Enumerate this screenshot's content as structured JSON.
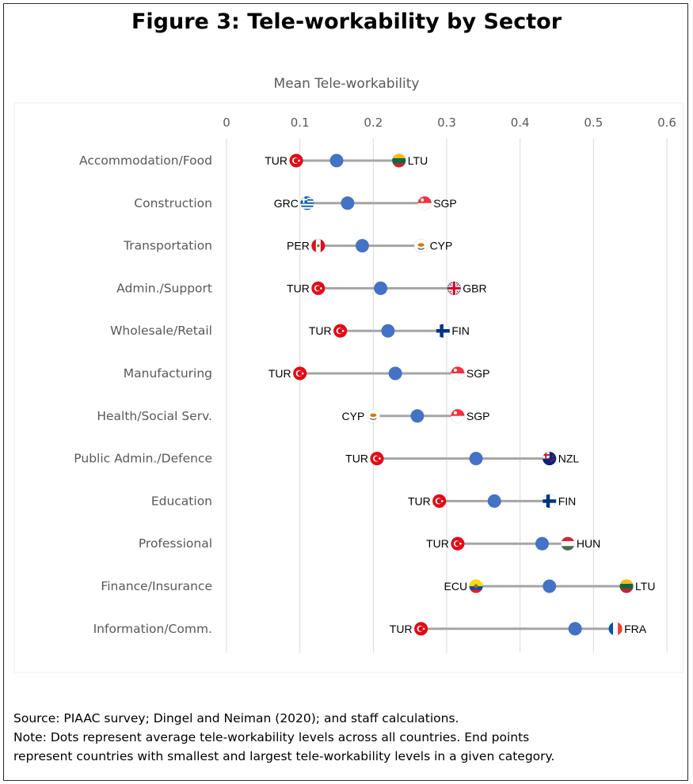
{
  "title": "Figure 3: Tele-workability by Sector",
  "notes": {
    "source": "Source: PIAAC survey; Dingel and Neiman (2020); and staff calculations.",
    "note_line1": "Note: Dots represent average tele-workability levels across all countries. End points",
    "note_line2": "represent countries with smallest and largest tele-workability levels in a given category."
  },
  "colors": {
    "mean_dot": "#4472c4",
    "range_line": "#a5a5a5",
    "grid": "#d9d9d9"
  },
  "chart_data": {
    "type": "dot-range",
    "xlabel": "Mean Tele-workability",
    "xlim": [
      0,
      0.6
    ],
    "xticks": [
      "0",
      "0.1",
      "0.2",
      "0.3",
      "0.4",
      "0.5",
      "0.6"
    ],
    "grid": "vertical",
    "categories": [
      {
        "sector": "Accommodation/Food",
        "min": 0.095,
        "min_country": "TUR",
        "mean": 0.15,
        "max": 0.235,
        "max_country": "LTU"
      },
      {
        "sector": "Construction",
        "min": 0.11,
        "min_country": "GRC",
        "mean": 0.165,
        "max": 0.27,
        "max_country": "SGP"
      },
      {
        "sector": "Transportation",
        "min": 0.125,
        "min_country": "PER",
        "mean": 0.185,
        "max": 0.265,
        "max_country": "CYP"
      },
      {
        "sector": "Admin./Support",
        "min": 0.125,
        "min_country": "TUR",
        "mean": 0.21,
        "max": 0.31,
        "max_country": "GBR"
      },
      {
        "sector": "Wholesale/Retail",
        "min": 0.155,
        "min_country": "TUR",
        "mean": 0.22,
        "max": 0.295,
        "max_country": "FIN"
      },
      {
        "sector": "Manufacturing",
        "min": 0.1,
        "min_country": "TUR",
        "mean": 0.23,
        "max": 0.315,
        "max_country": "SGP"
      },
      {
        "sector": "Health/Social Serv.",
        "min": 0.2,
        "min_country": "CYP",
        "mean": 0.26,
        "max": 0.315,
        "max_country": "SGP"
      },
      {
        "sector": "Public Admin./Defence",
        "min": 0.205,
        "min_country": "TUR",
        "mean": 0.34,
        "max": 0.44,
        "max_country": "NZL"
      },
      {
        "sector": "Education",
        "min": 0.29,
        "min_country": "TUR",
        "mean": 0.365,
        "max": 0.44,
        "max_country": "FIN"
      },
      {
        "sector": "Professional",
        "min": 0.315,
        "min_country": "TUR",
        "mean": 0.43,
        "max": 0.465,
        "max_country": "HUN"
      },
      {
        "sector": "Finance/Insurance",
        "min": 0.34,
        "min_country": "ECU",
        "mean": 0.44,
        "max": 0.545,
        "max_country": "LTU"
      },
      {
        "sector": "Information/Comm.",
        "min": 0.265,
        "min_country": "TUR",
        "mean": 0.475,
        "max": 0.53,
        "max_country": "FRA"
      }
    ]
  }
}
